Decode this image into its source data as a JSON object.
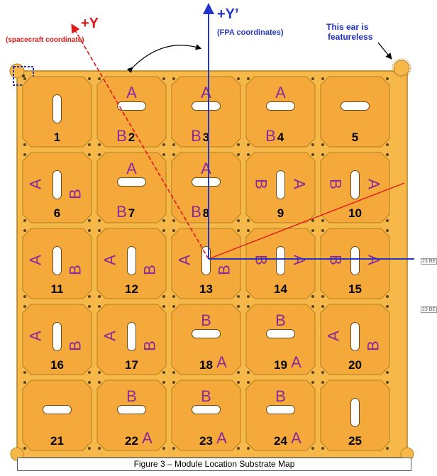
{
  "figure": {
    "caption": "Figure 3 – Module Location Substrate Map",
    "colors": {
      "plate": "#f7b84a",
      "plate_stroke": "#b57f1e",
      "module_fill": "#f4a93a",
      "letter": "#8a2a9a",
      "number": "#000000",
      "spacecraft_axis": "#e01818",
      "fpa_axis": "#2236c8",
      "annotation": "#1f2fc0"
    }
  },
  "axes": {
    "spacecraft_label": "+Y",
    "spacecraft_sub": "(spacecraft coordinate)",
    "fpa_label": "+Y’",
    "fpa_sub": "(FPA coordinates)"
  },
  "annotation": {
    "ear_line1": "This ear is",
    "ear_line2": "featureless"
  },
  "side_tags": [
    "23 BE",
    "23 BE"
  ],
  "modules": [
    {
      "number": "1",
      "a": "",
      "b": "",
      "slot": "v"
    },
    {
      "number": "2",
      "a": "A",
      "b": "B",
      "slot": "h"
    },
    {
      "number": "3",
      "a": "A",
      "b": "B",
      "slot": "h"
    },
    {
      "number": "4",
      "a": "A",
      "b": "B",
      "slot": "h"
    },
    {
      "number": "5",
      "a": "",
      "b": "",
      "slot": "h"
    },
    {
      "number": "6",
      "a": "A",
      "b": "B",
      "slot": "v"
    },
    {
      "number": "7",
      "a": "A",
      "b": "B",
      "slot": "h"
    },
    {
      "number": "8",
      "a": "A",
      "b": "B",
      "slot": "h"
    },
    {
      "number": "9",
      "a": "A",
      "b": "B",
      "slot": "v"
    },
    {
      "number": "10",
      "a": "A",
      "b": "B",
      "slot": "v"
    },
    {
      "number": "11",
      "a": "A",
      "b": "B",
      "slot": "v"
    },
    {
      "number": "12",
      "a": "A",
      "b": "B",
      "slot": "v"
    },
    {
      "number": "13",
      "a": "A",
      "b": "B",
      "slot": "v"
    },
    {
      "number": "14",
      "a": "A",
      "b": "B",
      "slot": "v"
    },
    {
      "number": "15",
      "a": "A",
      "b": "B",
      "slot": "v"
    },
    {
      "number": "16",
      "a": "A",
      "b": "B",
      "slot": "v"
    },
    {
      "number": "17",
      "a": "A",
      "b": "B",
      "slot": "v"
    },
    {
      "number": "18",
      "a": "A",
      "b": "B",
      "slot": "h"
    },
    {
      "number": "19",
      "a": "A",
      "b": "B",
      "slot": "h"
    },
    {
      "number": "20",
      "a": "A",
      "b": "B",
      "slot": "v"
    },
    {
      "number": "21",
      "a": "",
      "b": "",
      "slot": "h"
    },
    {
      "number": "22",
      "a": "A",
      "b": "B",
      "slot": "h"
    },
    {
      "number": "23",
      "a": "A",
      "b": "B",
      "slot": "h"
    },
    {
      "number": "24",
      "a": "A",
      "b": "B",
      "slot": "h"
    },
    {
      "number": "25",
      "a": "",
      "b": "",
      "slot": "v"
    }
  ]
}
